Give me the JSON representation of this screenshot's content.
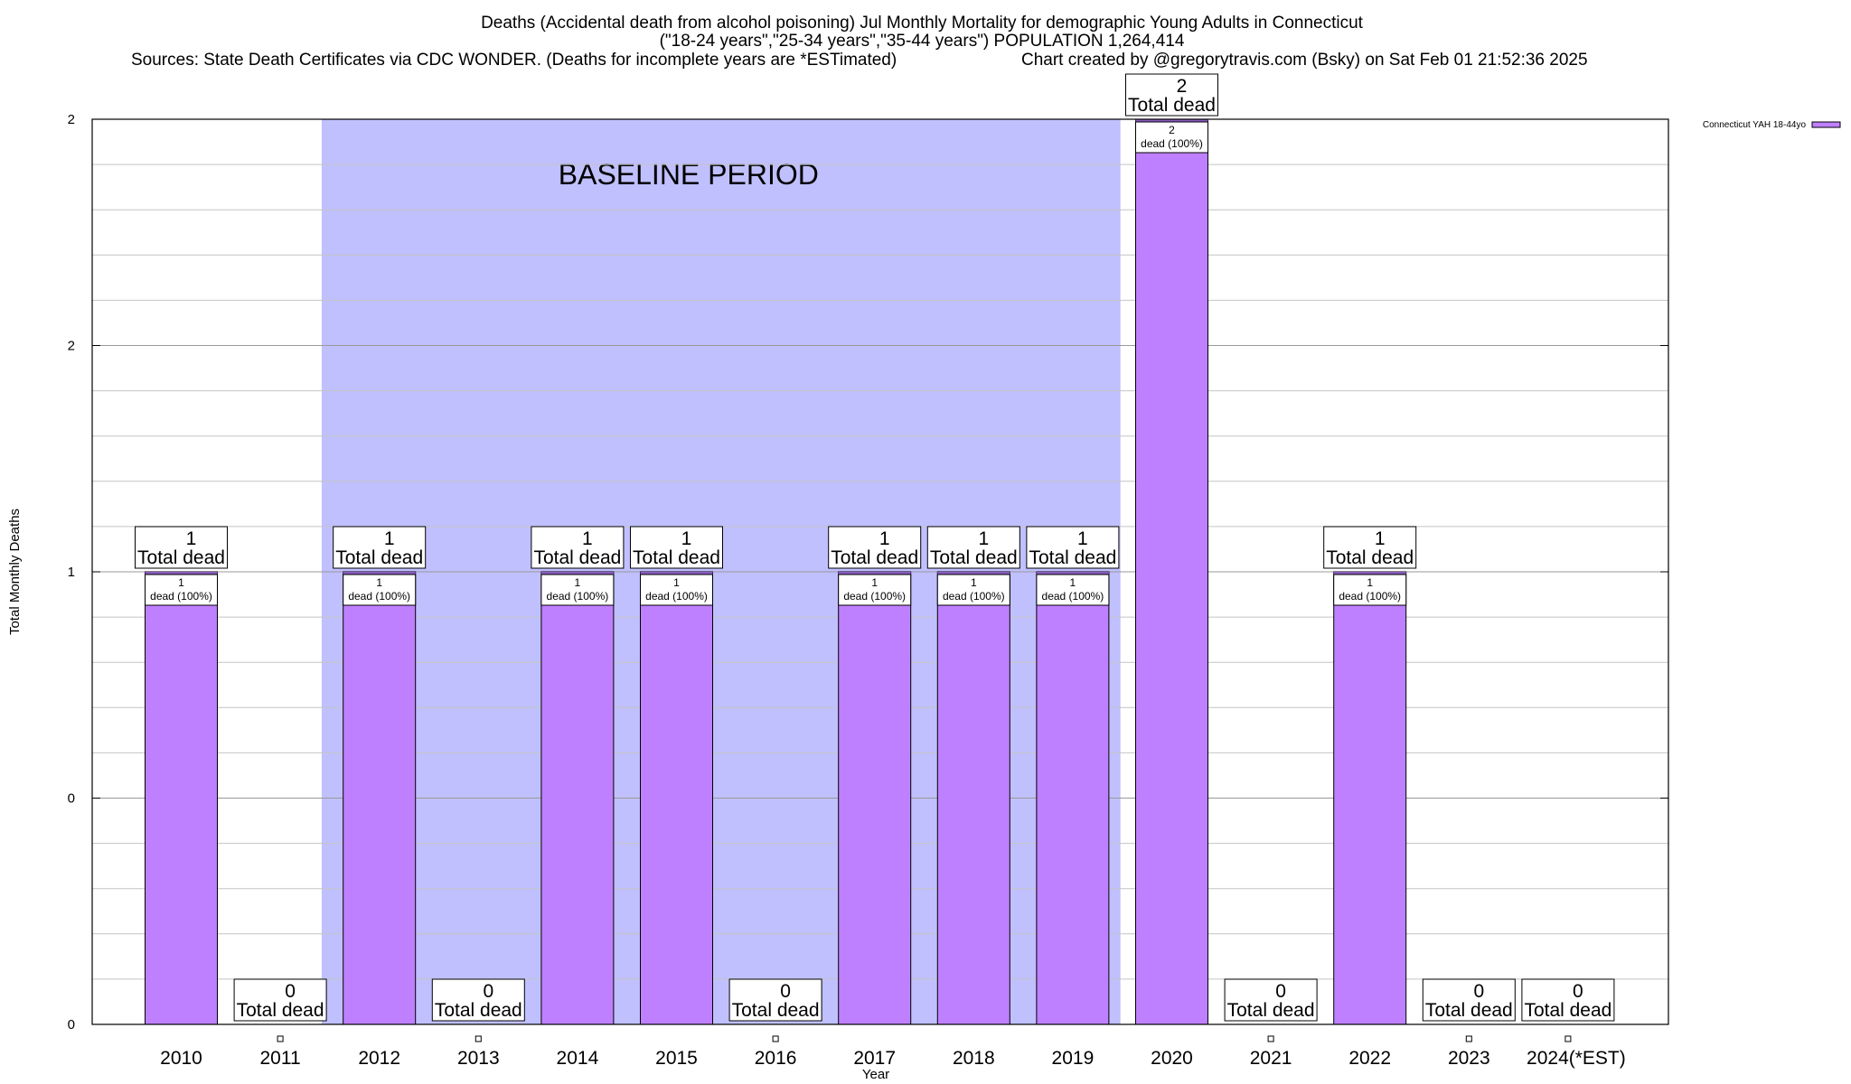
{
  "chart_data": {
    "type": "bar",
    "title_lines": [
      "Deaths (Accidental death from alcohol poisoning) Jul Monthly Mortality for demographic Young Adults in Connecticut",
      "(\"18-24 years\",\"25-34 years\",\"35-44 years\") POPULATION 1,264,414"
    ],
    "sources_text": "Sources: State Death Certificates via CDC WONDER. (Deaths for incomplete years are *ESTimated)",
    "credit_text": "Chart created by @gregorytravis.com (Bsky) on Sat Feb 01 21:52:36 2025",
    "xlabel": "Year",
    "ylabel": "Total Monthly Deaths",
    "ylim": [
      0,
      2
    ],
    "ytick_labels": [
      "0",
      "0",
      "1",
      "2",
      "2"
    ],
    "categories": [
      "2010",
      "2011",
      "2012",
      "2013",
      "2014",
      "2015",
      "2016",
      "2017",
      "2018",
      "2019",
      "2020",
      "2021",
      "2022",
      "2023",
      "2024(*EST)"
    ],
    "series": [
      {
        "name": "Connecticut YAH 18-44yo",
        "values": [
          1,
          0,
          1,
          0,
          1,
          1,
          0,
          1,
          1,
          1,
          2,
          0,
          1,
          0,
          0
        ]
      }
    ],
    "total_label_suffix": "Total dead",
    "inner_label_suffix": "dead (100%)",
    "baseline": {
      "label": "BASELINE PERIOD",
      "from": "2012",
      "to": "2019"
    },
    "grid": true,
    "legend_position": "top-right",
    "colors": {
      "bar": "#bf80ff",
      "baseline": "#c0c0ff",
      "bar_top": "#8a5cc0"
    }
  }
}
